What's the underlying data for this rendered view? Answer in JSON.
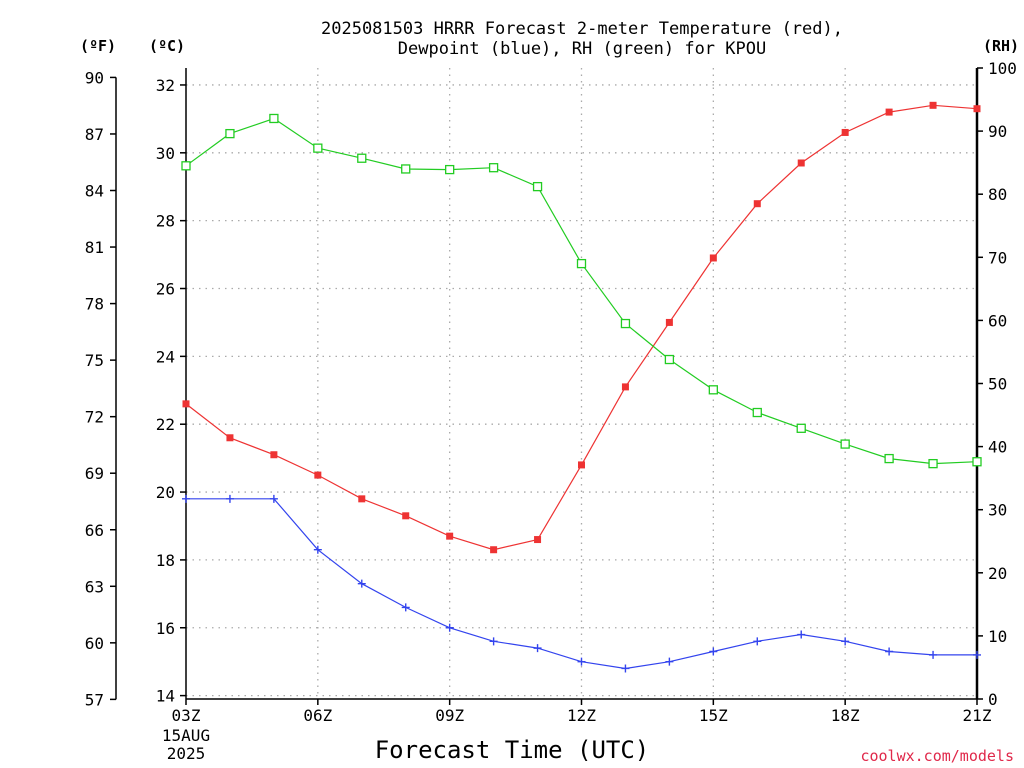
{
  "chart_data": {
    "type": "line",
    "title_line1": "2025081503 HRRR Forecast 2-meter Temperature (red),",
    "title_line2": "Dewpoint (blue), RH (green) for KPOU",
    "xlabel": "Forecast Time (UTC)",
    "credit": "coolwx.com/models",
    "units": {
      "fahrenheit": "(ºF)",
      "celsius": "(ºC)",
      "rh": "(RH)"
    },
    "x_hours": [
      3,
      4,
      5,
      6,
      7,
      8,
      9,
      10,
      11,
      12,
      13,
      14,
      15,
      16,
      17,
      18,
      19,
      20,
      21
    ],
    "x_ticks": [
      {
        "hour": 3,
        "label": "03Z",
        "sub1": "15AUG",
        "sub2": "2025"
      },
      {
        "hour": 6,
        "label": "06Z"
      },
      {
        "hour": 9,
        "label": "09Z"
      },
      {
        "hour": 12,
        "label": "12Z"
      },
      {
        "hour": 15,
        "label": "15Z"
      },
      {
        "hour": 18,
        "label": "18Z"
      },
      {
        "hour": 21,
        "label": "21Z"
      }
    ],
    "celsius_axis": {
      "range": [
        13.9,
        32.5
      ],
      "ticks": [
        14,
        16,
        18,
        20,
        22,
        24,
        26,
        28,
        30,
        32
      ]
    },
    "fahrenheit_ticks": [
      57,
      60,
      63,
      66,
      69,
      72,
      75,
      78,
      81,
      84,
      87,
      90
    ],
    "rh_axis": {
      "range": [
        0,
        100
      ],
      "ticks": [
        0,
        10,
        20,
        30,
        40,
        50,
        60,
        70,
        80,
        90,
        100
      ]
    },
    "series": [
      {
        "name": "Temperature",
        "axis": "celsius",
        "color": "#ee3333",
        "marker": "filled-square",
        "values": [
          22.6,
          21.6,
          21.1,
          20.5,
          19.8,
          19.3,
          18.7,
          18.3,
          18.6,
          20.8,
          23.1,
          25.0,
          26.9,
          28.5,
          29.7,
          30.6,
          31.2,
          31.4,
          31.3
        ]
      },
      {
        "name": "Dewpoint",
        "axis": "celsius",
        "color": "#3344ee",
        "marker": "plus",
        "values": [
          19.8,
          19.8,
          19.8,
          18.3,
          17.3,
          16.6,
          16.0,
          15.6,
          15.4,
          15.0,
          14.8,
          15.0,
          15.3,
          15.6,
          15.8,
          15.6,
          15.3,
          15.2,
          15.2
        ]
      },
      {
        "name": "RH",
        "axis": "rh",
        "color": "#22cc22",
        "marker": "open-square",
        "values": [
          84.5,
          89.6,
          92.0,
          87.3,
          85.7,
          84.0,
          83.9,
          84.2,
          81.2,
          69.0,
          59.5,
          53.8,
          49.0,
          45.4,
          42.9,
          40.4,
          38.1,
          37.3,
          37.6
        ]
      }
    ],
    "grid": true
  }
}
